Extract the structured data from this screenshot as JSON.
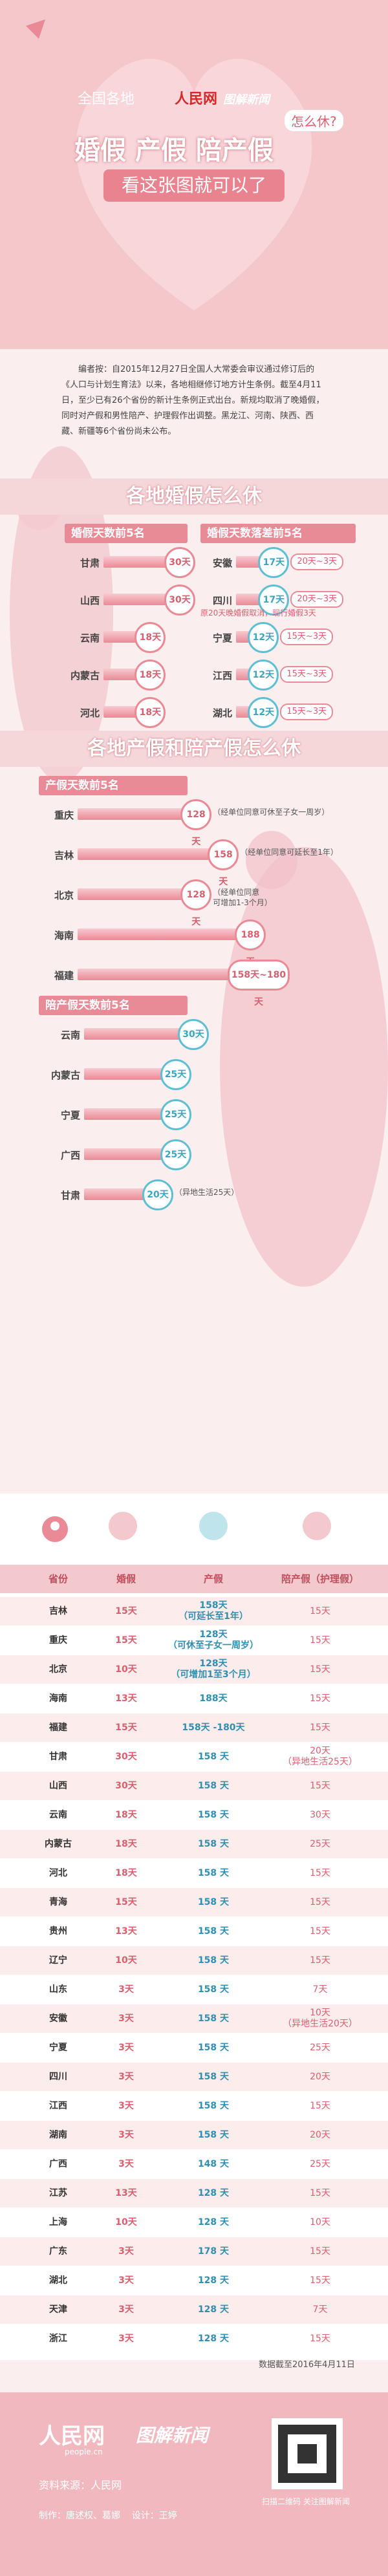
{
  "header": {
    "kicker": "全国各地",
    "brand": "人民网",
    "brand2": "图解新闻",
    "title_parts": [
      "婚假",
      "产假",
      "陪产假"
    ],
    "title_tail": "怎么休?",
    "subtitle": "看这张图就可以了"
  },
  "intro": "编者按：自2015年12月27日全国人大常委会审议通过修订后的《人口与计划生育法》以来，各地相继修订地方计生条例。截至4月11日，至少已有26个省份的新计生条例正式出台。新规均取消了晚婚假，同时对产假和男性陪产、护理假作出调整。黑龙江、河南、陕西、西藏、新疆等6个省份尚未公布。",
  "marriage": {
    "title": "各地婚假怎么休",
    "top5": {
      "title": "婚假天数前5名",
      "items": [
        {
          "province": "甘肃",
          "value": 30,
          "label": "30天"
        },
        {
          "province": "山西",
          "value": 30,
          "label": "30天"
        },
        {
          "province": "云南",
          "value": 18,
          "label": "18天"
        },
        {
          "province": "内蒙古",
          "value": 18,
          "label": "18天"
        },
        {
          "province": "河北",
          "value": 18,
          "label": "18天"
        }
      ]
    },
    "drop5": {
      "title": "婚假天数落差前5名",
      "note": "原20天晚婚假取消，现行婚假3天",
      "items": [
        {
          "province": "安徽",
          "value": 17,
          "label": "17天",
          "range": "20天~3天"
        },
        {
          "province": "四川",
          "value": 17,
          "label": "17天",
          "range": "20天~3天"
        },
        {
          "province": "宁夏",
          "value": 12,
          "label": "12天",
          "range": "15天~3天"
        },
        {
          "province": "江西",
          "value": 12,
          "label": "12天",
          "range": "15天~3天"
        },
        {
          "province": "湖北",
          "value": 12,
          "label": "12天",
          "range": "15天~3天"
        }
      ]
    }
  },
  "maternity": {
    "title": "各地产假和陪产假怎么休",
    "top5": {
      "title": "产假天数前5名",
      "items": [
        {
          "province": "重庆",
          "value": 128,
          "label": "128天",
          "note": "（经单位同意可休至子女一周岁）"
        },
        {
          "province": "吉林",
          "value": 158,
          "label": "158天",
          "note": "（经单位同意可延长至1年）"
        },
        {
          "province": "北京",
          "value": 128,
          "label": "128天",
          "note": "（经单位同意\n可增加1-3个月）"
        },
        {
          "province": "海南",
          "value": 188,
          "label": "188天"
        },
        {
          "province": "福建",
          "value": 180,
          "label": "158天~180天"
        }
      ]
    },
    "paternity": {
      "title": "陪产假天数前5名",
      "items": [
        {
          "province": "云南",
          "value": 30,
          "label": "30天"
        },
        {
          "province": "内蒙古",
          "value": 25,
          "label": "25天"
        },
        {
          "province": "宁夏",
          "value": 25,
          "label": "25天"
        },
        {
          "province": "广西",
          "value": 25,
          "label": "25天"
        },
        {
          "province": "甘肃",
          "value": 20,
          "label": "20天",
          "note": "（异地生活25天）"
        }
      ]
    }
  },
  "table": {
    "columns": [
      "省份",
      "婚假",
      "产假",
      "陪产假（护理假）"
    ],
    "rows": [
      [
        "吉林",
        "15天",
        "158天\n（可延长至1年）",
        "15天"
      ],
      [
        "重庆",
        "15天",
        "128天\n（可休至子女一周岁）",
        "15天"
      ],
      [
        "北京",
        "10天",
        "128天\n（可增加1至3个月）",
        "15天"
      ],
      [
        "海南",
        "13天",
        "188天",
        "15天"
      ],
      [
        "福建",
        "15天",
        "158天 -180天",
        "15天"
      ],
      [
        "甘肃",
        "30天",
        "158 天",
        "20天\n（异地生活25天）"
      ],
      [
        "山西",
        "30天",
        "158 天",
        "15天"
      ],
      [
        "云南",
        "18天",
        "158 天",
        "30天"
      ],
      [
        "内蒙古",
        "18天",
        "158 天",
        "25天"
      ],
      [
        "河北",
        "18天",
        "158 天",
        "15天"
      ],
      [
        "青海",
        "15天",
        "158 天",
        "15天"
      ],
      [
        "贵州",
        "13天",
        "158 天",
        "15天"
      ],
      [
        "辽宁",
        "10天",
        "158 天",
        "15天"
      ],
      [
        "山东",
        "3天",
        "158 天",
        "7天"
      ],
      [
        "安徽",
        "3天",
        "158 天",
        "10天\n（异地生活20天）"
      ],
      [
        "宁夏",
        "3天",
        "158 天",
        "25天"
      ],
      [
        "四川",
        "3天",
        "158 天",
        "20天"
      ],
      [
        "江西",
        "3天",
        "158 天",
        "15天"
      ],
      [
        "湖南",
        "3天",
        "158 天",
        "20天"
      ],
      [
        "广西",
        "3天",
        "148 天",
        "25天"
      ],
      [
        "江苏",
        "13天",
        "128 天",
        "15天"
      ],
      [
        "上海",
        "10天",
        "128 天",
        "10天"
      ],
      [
        "广东",
        "3天",
        "178 天",
        "15天"
      ],
      [
        "湖北",
        "3天",
        "128 天",
        "15天"
      ],
      [
        "天津",
        "3天",
        "128 天",
        "7天"
      ],
      [
        "浙江",
        "3天",
        "128 天",
        "15天"
      ]
    ]
  },
  "note": "数据截至2016年4月11日",
  "footer": {
    "brand": "人民网",
    "domain": "people.cn",
    "brand2": "图解新闻",
    "source": "资料来源：人民网",
    "credits": "制作：唐述权、葛娜    设计：王婷",
    "qr_caption": "扫描二维码 关注图解新闻"
  }
}
